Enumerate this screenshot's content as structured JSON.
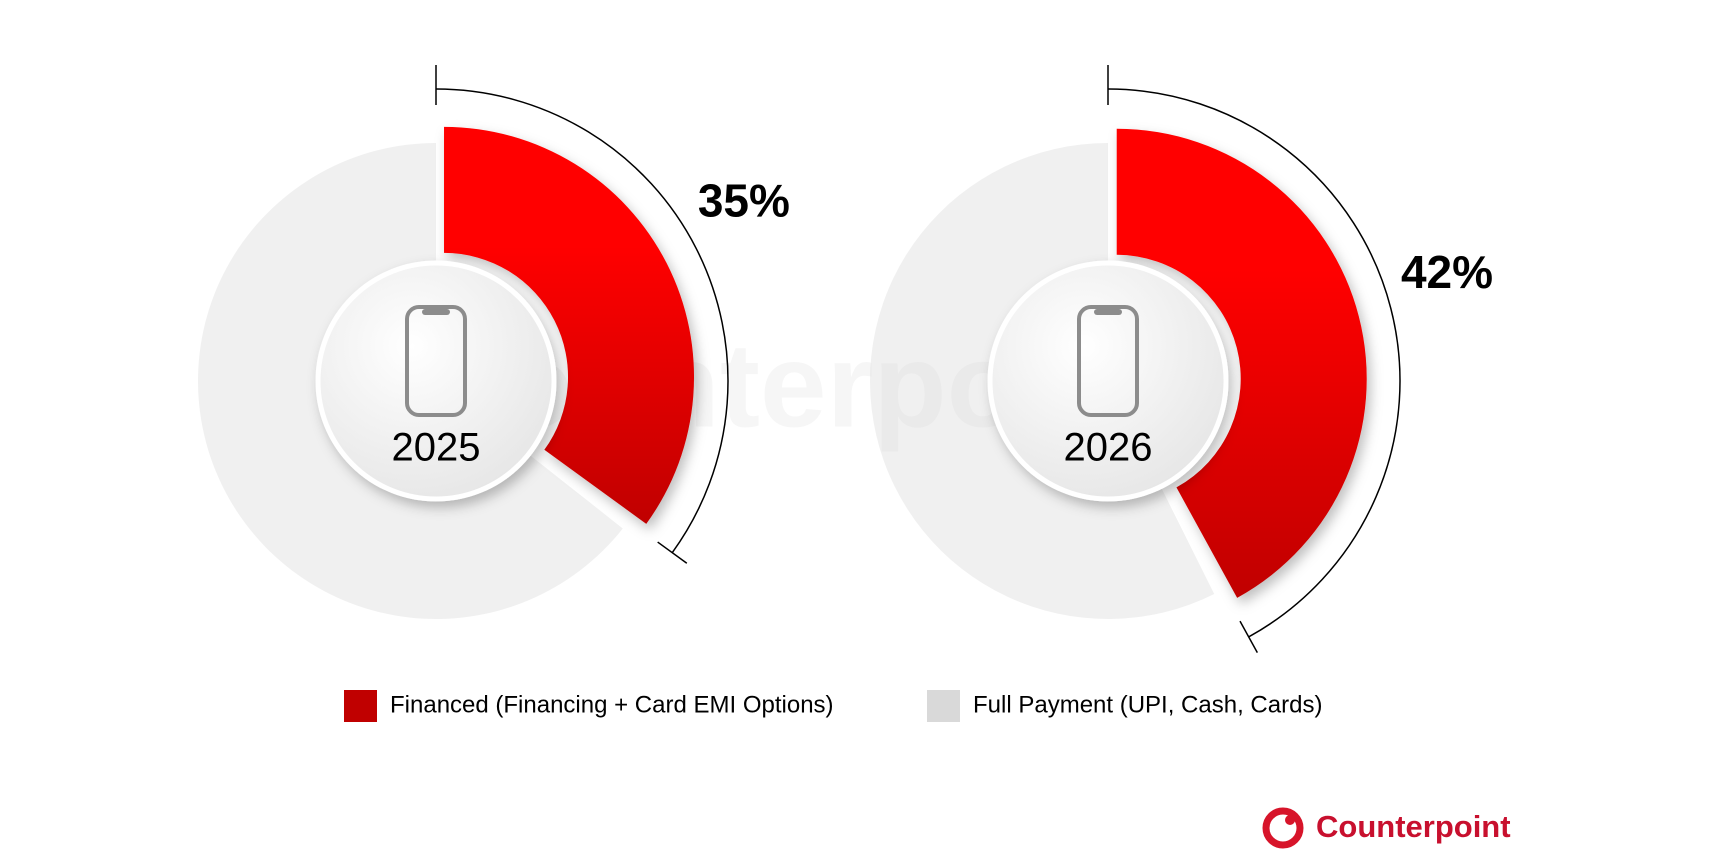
{
  "chart_data": {
    "type": "donut",
    "categories": [
      "2025",
      "2026"
    ],
    "series": [
      {
        "name": "Financed (Financing + Card EMI Options)",
        "color": "#c00000",
        "values": [
          35,
          42
        ],
        "value_labels": [
          "35%",
          "42%"
        ]
      },
      {
        "name": "Full Payment (UPI, Cash, Cards)",
        "color": "#d9d9d9",
        "values": [
          65,
          58
        ]
      }
    ]
  },
  "logo": "Counterpoint"
}
